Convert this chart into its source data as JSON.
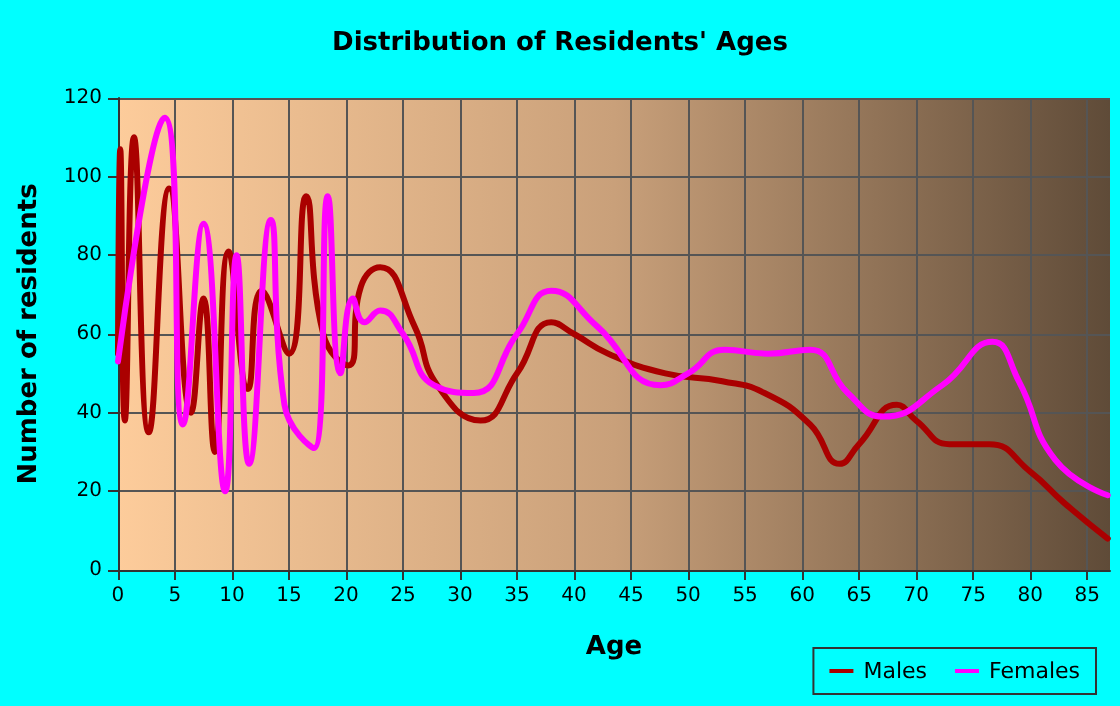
{
  "chart_data": {
    "type": "line",
    "title": "Distribution of Residents' Ages",
    "xlabel": "Age",
    "ylabel": "Number of residents",
    "series": [
      {
        "name": "Males",
        "color": "#aa0000",
        "x": [
          0,
          0.2,
          0.6,
          1.4,
          2.7,
          4.5,
          6.4,
          7.5,
          8.5,
          9.7,
          11.4,
          12.6,
          15,
          16.5,
          18,
          20.2,
          21.3,
          23,
          26,
          28,
          31.8,
          35,
          38,
          40,
          43,
          48,
          53,
          56.7,
          60.7,
          63.3,
          65,
          68.3,
          70,
          72.9,
          76.4,
          80,
          83,
          86.8
        ],
        "values": [
          55,
          107,
          38,
          110,
          35,
          97,
          40,
          69,
          30,
          81,
          46,
          71,
          55,
          95,
          60,
          52,
          72,
          77,
          62,
          47,
          38,
          50,
          63,
          60,
          55,
          50,
          48,
          45,
          37,
          27,
          32,
          42,
          38,
          32,
          32,
          25,
          17,
          8
        ]
      },
      {
        "name": "Females",
        "color": "#ff00ff",
        "x": [
          0,
          4.1,
          5.7,
          7.5,
          9.4,
          10.4,
          11.5,
          13.4,
          14.6,
          17.2,
          18.4,
          19.5,
          20.6,
          21.6,
          23,
          25,
          27.7,
          31.2,
          35,
          38,
          42,
          47.6,
          50,
          53.2,
          57,
          60.7,
          64,
          67.1,
          72.3,
          76.7,
          79,
          82.2,
          86.8
        ],
        "values": [
          53,
          115,
          37,
          88,
          20,
          80,
          27,
          89,
          42,
          31,
          95,
          50,
          69,
          63,
          66,
          60,
          47,
          45,
          60,
          71,
          62,
          47,
          50,
          56,
          55,
          56,
          45,
          39,
          47,
          58,
          48,
          28,
          19
        ]
      }
    ],
    "xlim": [
      0,
      87
    ],
    "xticks": [
      0,
      5,
      10,
      15,
      20,
      25,
      30,
      35,
      40,
      45,
      50,
      55,
      60,
      65,
      70,
      75,
      80,
      85
    ],
    "ylim": [
      0,
      120
    ],
    "yticks": [
      0,
      20,
      40,
      60,
      80,
      100,
      120
    ],
    "grid": true,
    "legend": "bottom right",
    "marker": "none",
    "line_style": "solid"
  }
}
